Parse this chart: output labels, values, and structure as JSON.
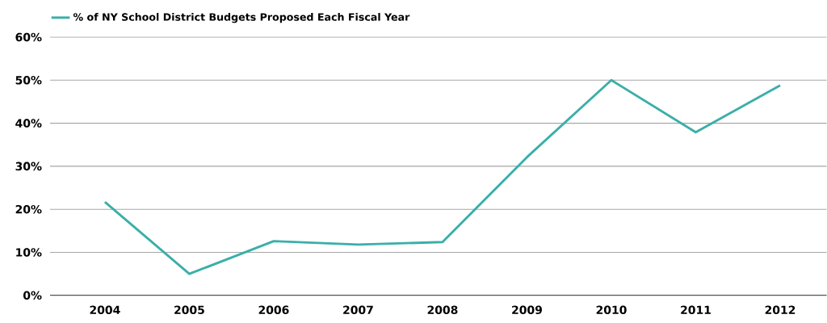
{
  "chart_data": {
    "type": "line",
    "categories": [
      "2004",
      "2005",
      "2006",
      "2007",
      "2008",
      "2009",
      "2010",
      "2011",
      "2012"
    ],
    "series": [
      {
        "name": "% of NY School District Budgets Proposed Each Fiscal Year",
        "color": "#3aafa9",
        "values": [
          21.7,
          5.0,
          12.6,
          11.8,
          12.4,
          32.1,
          50.0,
          37.9,
          48.8
        ]
      }
    ],
    "ylim": [
      0,
      60
    ],
    "yticks": [
      {
        "value": 0,
        "label": "0%"
      },
      {
        "value": 10,
        "label": "10%"
      },
      {
        "value": 20,
        "label": "20%"
      },
      {
        "value": 30,
        "label": "30%"
      },
      {
        "value": 40,
        "label": "40%"
      },
      {
        "value": 50,
        "label": "50%"
      },
      {
        "value": 60,
        "label": "60%"
      }
    ],
    "grid": "y",
    "legend": "top left",
    "marker": "none",
    "line_style": "solid"
  }
}
